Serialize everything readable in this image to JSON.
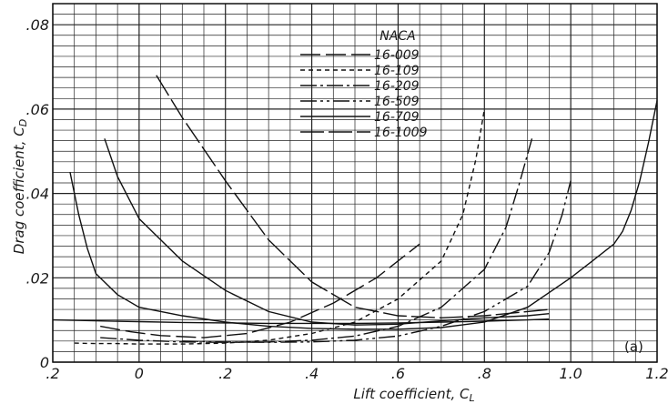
{
  "chart_data": {
    "type": "line",
    "xlabel": "Lift coefficient, C",
    "xlabel_sub": "L",
    "ylabel": "Drag coefficient, C",
    "ylabel_sub": "D",
    "xlim": [
      -0.2,
      1.2
    ],
    "ylim": [
      0,
      0.085
    ],
    "x_ticks": [
      -0.2,
      0,
      0.2,
      0.4,
      0.6,
      0.8,
      1.0,
      1.2
    ],
    "x_tick_labels": [
      ".2",
      "0",
      ".2",
      ".4",
      ".6",
      ".8",
      "1.0",
      "1.2"
    ],
    "y_ticks": [
      0,
      0.02,
      0.04,
      0.06,
      0.08
    ],
    "y_tick_labels": [
      "0",
      ".02",
      ".04",
      ".06",
      ".08"
    ],
    "grid": true,
    "legend_title": "NACA",
    "legend_position": "top-center",
    "annotation": "(a)",
    "series": [
      {
        "name": "16-009",
        "dash": "22,6",
        "x": [
          -0.09,
          -0.02,
          0.05,
          0.15,
          0.25,
          0.35,
          0.45,
          0.55,
          0.65
        ],
        "y": [
          0.0085,
          0.0072,
          0.0063,
          0.0058,
          0.0068,
          0.0095,
          0.014,
          0.02,
          0.028
        ]
      },
      {
        "name": "16-109",
        "dash": "5,4",
        "x": [
          -0.15,
          -0.1,
          -0.05,
          0.0,
          0.1,
          0.2,
          0.3,
          0.4,
          0.5,
          0.6,
          0.7,
          0.75,
          0.78,
          0.8
        ],
        "y": [
          0.0045,
          0.0044,
          0.0044,
          0.0043,
          0.0043,
          0.0045,
          0.0052,
          0.0068,
          0.0095,
          0.015,
          0.024,
          0.035,
          0.048,
          0.06
        ]
      },
      {
        "name": "16-209",
        "dash": "18,4,3,4",
        "x": [
          -0.09,
          0.0,
          0.1,
          0.2,
          0.3,
          0.4,
          0.5,
          0.6,
          0.7,
          0.8,
          0.85,
          0.88,
          0.91
        ],
        "y": [
          0.0058,
          0.0052,
          0.0048,
          0.0047,
          0.0048,
          0.0052,
          0.0062,
          0.0085,
          0.013,
          0.022,
          0.032,
          0.042,
          0.053
        ]
      },
      {
        "name": "16-509",
        "dash": "18,4,3,4,3,4",
        "x": [
          0.1,
          0.2,
          0.3,
          0.4,
          0.5,
          0.6,
          0.7,
          0.8,
          0.9,
          0.95,
          0.98,
          1.0
        ],
        "y": [
          0.005,
          0.0048,
          0.0047,
          0.0048,
          0.0052,
          0.0062,
          0.0085,
          0.012,
          0.018,
          0.026,
          0.035,
          0.043
        ]
      },
      {
        "name": "16-709",
        "dash": "",
        "x": [
          -0.16,
          -0.14,
          -0.12,
          -0.1,
          -0.05,
          0.0,
          0.1,
          0.2,
          0.3,
          0.4,
          0.5,
          0.6,
          0.7,
          0.8,
          0.9,
          1.0,
          1.05,
          1.1,
          1.12,
          1.14,
          1.16,
          1.18,
          1.2
        ],
        "y": [
          0.045,
          0.035,
          0.027,
          0.021,
          0.016,
          0.013,
          0.011,
          0.0095,
          0.0085,
          0.008,
          0.0078,
          0.0078,
          0.0082,
          0.0095,
          0.013,
          0.02,
          0.024,
          0.028,
          0.031,
          0.036,
          0.043,
          0.052,
          0.062
        ]
      },
      {
        "name": "16-1009",
        "dash": "26,5",
        "x": [
          0.04,
          0.1,
          0.2,
          0.3,
          0.4,
          0.5,
          0.6,
          0.7,
          0.8,
          0.9,
          0.95
        ],
        "y": [
          0.068,
          0.058,
          0.043,
          0.029,
          0.019,
          0.013,
          0.011,
          0.0105,
          0.011,
          0.012,
          0.0125
        ]
      },
      {
        "name": "",
        "dash": "",
        "x": [
          -0.08,
          -0.05,
          0.0,
          0.1,
          0.2,
          0.3,
          0.4,
          0.5,
          0.6,
          0.7,
          0.8,
          0.9,
          0.95
        ],
        "y": [
          0.053,
          0.044,
          0.034,
          0.024,
          0.017,
          0.012,
          0.0095,
          0.0088,
          0.009,
          0.0098,
          0.0105,
          0.011,
          0.0115
        ]
      },
      {
        "name": "",
        "dash": "",
        "x": [
          -0.2,
          -0.1,
          0.0,
          0.1,
          0.2,
          0.3,
          0.4,
          0.5,
          0.6,
          0.7,
          0.8,
          0.9,
          0.95
        ],
        "y": [
          0.01,
          0.0098,
          0.0096,
          0.0094,
          0.0093,
          0.0092,
          0.0092,
          0.0092,
          0.0093,
          0.0095,
          0.0097,
          0.01,
          0.0102
        ]
      }
    ]
  }
}
